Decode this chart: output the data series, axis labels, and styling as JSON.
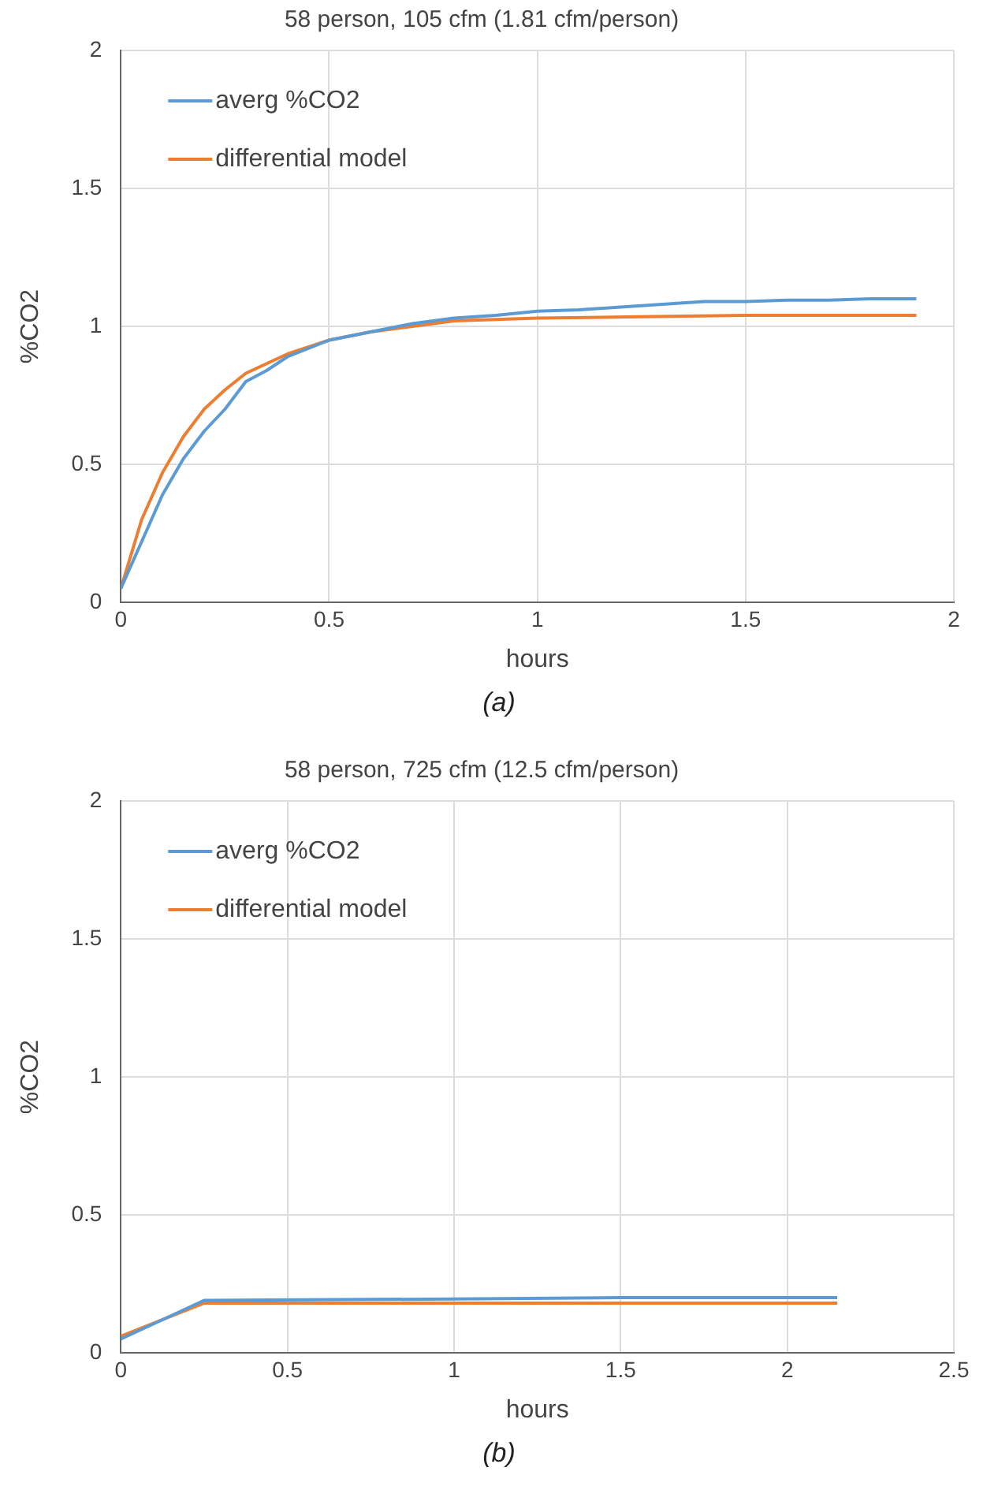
{
  "chart_data": [
    {
      "type": "line",
      "title": "58 person, 105 cfm (1.81 cfm/person)",
      "xlabel": "hours",
      "ylabel": "%CO2",
      "xlim": [
        0,
        2
      ],
      "xticks": [
        0,
        0.5,
        1,
        1.5,
        2
      ],
      "ylim": [
        0,
        2
      ],
      "yticks": [
        0,
        0.5,
        1,
        1.5,
        2
      ],
      "grid": true,
      "legend": "top left",
      "marker": "none",
      "line_style": "solid",
      "annotations": [
        "(a)"
      ],
      "series": [
        {
          "name": "averg %CO2",
          "color": "#5b9bd5",
          "x": [
            0,
            0.05,
            0.1,
            0.15,
            0.2,
            0.25,
            0.3,
            0.35,
            0.4,
            0.5,
            0.6,
            0.7,
            0.8,
            0.9,
            1.0,
            1.1,
            1.2,
            1.3,
            1.4,
            1.5,
            1.6,
            1.7,
            1.8,
            1.91
          ],
          "values": [
            0.05,
            0.22,
            0.39,
            0.52,
            0.62,
            0.7,
            0.8,
            0.84,
            0.89,
            0.95,
            0.98,
            1.01,
            1.03,
            1.04,
            1.055,
            1.06,
            1.07,
            1.08,
            1.09,
            1.09,
            1.095,
            1.095,
            1.1,
            1.1
          ]
        },
        {
          "name": "differential model",
          "color": "#ed7d31",
          "x": [
            0,
            0.05,
            0.1,
            0.15,
            0.2,
            0.25,
            0.3,
            0.4,
            0.5,
            0.6,
            0.7,
            0.8,
            0.9,
            1.0,
            1.25,
            1.5,
            1.91
          ],
          "values": [
            0.05,
            0.3,
            0.47,
            0.6,
            0.7,
            0.77,
            0.83,
            0.9,
            0.95,
            0.98,
            1.0,
            1.02,
            1.025,
            1.03,
            1.035,
            1.04,
            1.04
          ]
        }
      ]
    },
    {
      "type": "line",
      "title": "58 person, 725 cfm (12.5 cfm/person)",
      "xlabel": "hours",
      "ylabel": "%CO2",
      "xlim": [
        0,
        2.5
      ],
      "xticks": [
        0,
        0.5,
        1,
        1.5,
        2,
        2.5
      ],
      "ylim": [
        0,
        2
      ],
      "yticks": [
        0,
        0.5,
        1,
        1.5,
        2
      ],
      "grid": true,
      "legend": "top left",
      "marker": "none",
      "line_style": "solid",
      "annotations": [
        "(b)"
      ],
      "series": [
        {
          "name": "averg %CO2",
          "color": "#5b9bd5",
          "x": [
            0,
            0.25,
            1,
            1.5,
            2.15
          ],
          "values": [
            0.05,
            0.19,
            0.195,
            0.2,
            0.2
          ]
        },
        {
          "name": "differential model",
          "color": "#ed7d31",
          "x": [
            0,
            0.25,
            1,
            2.15
          ],
          "values": [
            0.06,
            0.18,
            0.18,
            0.18
          ]
        }
      ]
    }
  ]
}
